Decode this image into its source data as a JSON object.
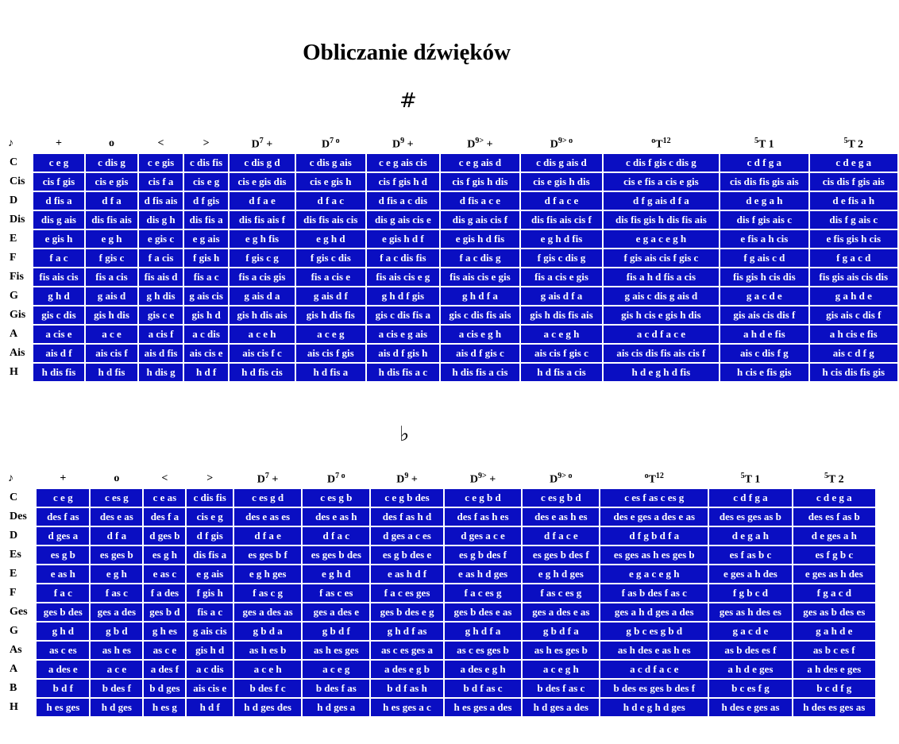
{
  "title": "Obliczanie dźwięków",
  "sharp_symbol": "#",
  "flat_symbol": "♭",
  "sharp": {
    "corner": "♪",
    "headers": [
      {
        "main": "+",
        "sup": "",
        "pre": "",
        "post": ""
      },
      {
        "main": "o",
        "sup": "",
        "pre": "",
        "post": ""
      },
      {
        "main": "<",
        "sup": "",
        "pre": "",
        "post": ""
      },
      {
        "main": ">",
        "sup": "",
        "pre": "",
        "post": ""
      },
      {
        "main": "D",
        "sup": "7",
        "pre": "",
        "post": " +"
      },
      {
        "main": "D",
        "sup": "7 o",
        "pre": "",
        "post": ""
      },
      {
        "main": "D",
        "sup": "9",
        "pre": "",
        "post": " +"
      },
      {
        "main": "D",
        "sup": "9>",
        "pre": "",
        "post": " +"
      },
      {
        "main": "D",
        "sup": "9> o",
        "pre": "",
        "post": ""
      },
      {
        "main": "T",
        "sup": "12",
        "pre": "o",
        "post": ""
      },
      {
        "main": "T 1",
        "sup": "",
        "pre": "5",
        "post": ""
      },
      {
        "main": "T 2",
        "sup": "",
        "pre": "5",
        "post": ""
      }
    ],
    "rows": [
      {
        "label": "C",
        "cells": [
          "c e g",
          "c dis g",
          "c e gis",
          "c dis fis",
          "c dis g d",
          "c dis g ais",
          "c e g ais cis",
          "c e g ais d",
          "c dis g ais d",
          "c dis f gis c dis g",
          "c d f g a",
          "c d e g a"
        ]
      },
      {
        "label": "Cis",
        "cells": [
          "cis f gis",
          "cis e gis",
          "cis f a",
          "cis e g",
          "cis e gis dis",
          "cis e gis h",
          "cis f gis h d",
          "cis f gis h dis",
          "cis e gis h dis",
          "cis e fis a cis e gis",
          "cis dis fis gis ais",
          "cis dis f gis ais"
        ]
      },
      {
        "label": "D",
        "cells": [
          "d fis a",
          "d f a",
          "d fis ais",
          "d f gis",
          "d f a e",
          "d f a c",
          "d fis a c dis",
          "d fis a c e",
          "d f a c e",
          "d f g ais d f a",
          "d e g a h",
          "d e fis a h"
        ]
      },
      {
        "label": "Dis",
        "cells": [
          "dis g ais",
          "dis fis ais",
          "dis g h",
          "dis fis a",
          "dis fis ais f",
          "dis fis ais cis",
          "dis g ais cis e",
          "dis g ais cis f",
          "dis fis ais cis f",
          "dis fis gis h dis fis ais",
          "dis f gis ais c",
          "dis f g ais c"
        ]
      },
      {
        "label": "E",
        "cells": [
          "e gis h",
          "e g h",
          "e gis c",
          "e g ais",
          "e g h fis",
          "e g h d",
          "e gis h d f",
          "e gis h d fis",
          "e g h d fis",
          "e g a c e g h",
          "e fis a h cis",
          "e fis gis h cis"
        ]
      },
      {
        "label": "F",
        "cells": [
          "f a c",
          "f gis c",
          "f a cis",
          "f gis h",
          "f gis c g",
          "f gis c dis",
          "f a c dis fis",
          "f a c dis g",
          "f gis c dis g",
          "f gis ais cis f gis c",
          "f g ais c d",
          "f g a c d"
        ]
      },
      {
        "label": "Fis",
        "cells": [
          "fis ais cis",
          "fis a cis",
          "fis ais d",
          "fis a c",
          "fis a cis gis",
          "fis a cis e",
          "fis ais cis e g",
          "fis ais cis e gis",
          "fis a cis e gis",
          "fis a h d fis a cis",
          "fis gis h cis dis",
          "fis gis ais cis dis"
        ]
      },
      {
        "label": "G",
        "cells": [
          "g h d",
          "g ais d",
          "g h dis",
          "g ais cis",
          "g ais d a",
          "g ais d f",
          "g h d f gis",
          "g h d f a",
          "g ais d f a",
          "g ais c dis g ais d",
          "g a c d e",
          "g a h d e"
        ]
      },
      {
        "label": "Gis",
        "cells": [
          "gis c dis",
          "gis h dis",
          "gis c e",
          "gis h d",
          "gis h dis ais",
          "gis h dis fis",
          "gis c dis fis a",
          "gis c dis fis ais",
          "gis h dis fis ais",
          "gis h cis e gis h dis",
          "gis ais cis dis f",
          "gis ais c dis f"
        ]
      },
      {
        "label": "A",
        "cells": [
          "a cis e",
          "a c e",
          "a cis f",
          "a c dis",
          "a c e h",
          "a c e g",
          "a cis e g ais",
          "a cis e g h",
          "a c e g h",
          "a c d f a c e",
          "a h d e fis",
          "a h cis e fis"
        ]
      },
      {
        "label": "Ais",
        "cells": [
          "ais d f",
          "ais cis f",
          "ais d fis",
          "ais cis e",
          "ais cis f c",
          "ais cis f gis",
          "ais d f gis h",
          "ais d f gis c",
          "ais cis f gis c",
          "ais cis dis fis ais cis f",
          "ais c dis f g",
          "ais c d f g"
        ]
      },
      {
        "label": "H",
        "cells": [
          "h dis fis",
          "h d fis",
          "h dis g",
          "h d f",
          "h d fis cis",
          "h d fis a",
          "h dis fis a c",
          "h dis fis a cis",
          "h d fis a cis",
          "h d e g h d fis",
          "h cis e fis gis",
          "h cis dis fis gis"
        ]
      }
    ]
  },
  "flat": {
    "corner": "♪",
    "headers": [
      {
        "main": "+",
        "sup": "",
        "pre": "",
        "post": ""
      },
      {
        "main": "o",
        "sup": "",
        "pre": "",
        "post": ""
      },
      {
        "main": "<",
        "sup": "",
        "pre": "",
        "post": ""
      },
      {
        "main": ">",
        "sup": "",
        "pre": "",
        "post": ""
      },
      {
        "main": "D",
        "sup": "7",
        "pre": "",
        "post": " +"
      },
      {
        "main": "D",
        "sup": "7 o",
        "pre": "",
        "post": ""
      },
      {
        "main": "D",
        "sup": "9",
        "pre": "",
        "post": " +"
      },
      {
        "main": "D",
        "sup": "9>",
        "pre": "",
        "post": " +"
      },
      {
        "main": "D",
        "sup": "9> o",
        "pre": "",
        "post": ""
      },
      {
        "main": "T",
        "sup": "12",
        "pre": "o",
        "post": ""
      },
      {
        "main": "T 1",
        "sup": "",
        "pre": "5",
        "post": ""
      },
      {
        "main": "T 2",
        "sup": "",
        "pre": "5",
        "post": ""
      }
    ],
    "rows": [
      {
        "label": "C",
        "cells": [
          "c e g",
          "c es g",
          "c e as",
          "c dis fis",
          "c es g d",
          "c es g b",
          "c e g b des",
          "c e g b d",
          "c es g b d",
          "c es f as c es g",
          "c d f g a",
          "c d e g a"
        ]
      },
      {
        "label": "Des",
        "cells": [
          "des f as",
          "des e as",
          "des f a",
          "cis e g",
          "des e as es",
          "des e as h",
          "des f as h d",
          "des f as h es",
          "des e as h es",
          "des e ges a des e as",
          "des es ges as b",
          "des es f as b"
        ]
      },
      {
        "label": "D",
        "cells": [
          "d ges a",
          "d f a",
          "d ges b",
          "d f gis",
          "d f a e",
          "d f a c",
          "d ges a c es",
          "d ges a c e",
          "d f a c e",
          "d f g b d f a",
          "d e g a h",
          "d e ges a h"
        ]
      },
      {
        "label": "Es",
        "cells": [
          "es g b",
          "es ges b",
          "es g h",
          "dis fis a",
          "es ges b f",
          "es ges b des",
          "es g b des e",
          "es g b des f",
          "es ges b des f",
          "es ges as h es ges b",
          "es f as b c",
          "es f g b c"
        ]
      },
      {
        "label": "E",
        "cells": [
          "e as h",
          "e g h",
          "e as c",
          "e g ais",
          "e g h ges",
          "e g h d",
          "e as h d f",
          "e as h d ges",
          "e g h d ges",
          "e g a c e g h",
          "e ges a h des",
          "e ges as h des"
        ]
      },
      {
        "label": "F",
        "cells": [
          "f a c",
          "f as c",
          "f a des",
          "f gis h",
          "f as c g",
          "f as c es",
          "f a c es ges",
          "f a c es g",
          "f as c es g",
          "f as b des f as c",
          "f g b c d",
          "f g a c d"
        ]
      },
      {
        "label": "Ges",
        "cells": [
          "ges b des",
          "ges a des",
          "ges b d",
          "fis a c",
          "ges a des as",
          "ges a des e",
          "ges b des e g",
          "ges b des e as",
          "ges a des e as",
          "ges a h d ges a des",
          "ges as h des es",
          "ges as b des es"
        ]
      },
      {
        "label": "G",
        "cells": [
          "g h d",
          "g b d",
          "g h es",
          "g ais cis",
          "g b d a",
          "g b d f",
          "g h d f as",
          "g h d f a",
          "g b d f a",
          "g b c es g b d",
          "g a c d e",
          "g a h d e"
        ]
      },
      {
        "label": "As",
        "cells": [
          "as c es",
          "as h es",
          "as c e",
          "gis h d",
          "as h es b",
          "as h es ges",
          "as c es ges a",
          "as c es ges b",
          "as h es ges b",
          "as h des e as h es",
          "as b des es f",
          "as b c es f"
        ]
      },
      {
        "label": "A",
        "cells": [
          "a des e",
          "a c e",
          "a des f",
          "a c dis",
          "a c e h",
          "a c e g",
          "a des e g b",
          "a des e g h",
          "a c e g h",
          "a c d f a c e",
          "a h d e ges",
          "a h des e ges"
        ]
      },
      {
        "label": "B",
        "cells": [
          "b d f",
          "b des f",
          "b d ges",
          "ais cis e",
          "b des f c",
          "b des f as",
          "b d f as h",
          "b d f as c",
          "b des f as c",
          "b des es ges b des f",
          "b c es f g",
          "b c d f g"
        ]
      },
      {
        "label": "H",
        "cells": [
          "h es ges",
          "h d ges",
          "h es g",
          "h d f",
          "h d ges des",
          "h d ges a",
          "h es ges a c",
          "h es ges a des",
          "h d ges a des",
          "h d e g h d ges",
          "h des e ges as",
          "h des es ges as"
        ]
      }
    ]
  }
}
